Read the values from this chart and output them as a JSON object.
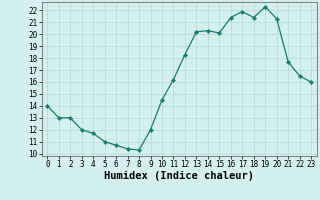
{
  "x": [
    0,
    1,
    2,
    3,
    4,
    5,
    6,
    7,
    8,
    9,
    10,
    11,
    12,
    13,
    14,
    15,
    16,
    17,
    18,
    19,
    20,
    21,
    22,
    23
  ],
  "y": [
    14,
    13,
    13,
    12,
    11.7,
    11,
    10.7,
    10.4,
    10.3,
    12,
    14.5,
    16.2,
    18.3,
    20.2,
    20.3,
    20.1,
    21.4,
    21.9,
    21.4,
    22.3,
    21.3,
    17.7,
    16.5,
    16
  ],
  "line_color": "#1a7a6e",
  "marker": "D",
  "marker_size": 2.2,
  "bg_color": "#d4f0ee",
  "grid_color": "#b0d8d5",
  "xlabel": "Humidex (Indice chaleur)",
  "ylim": [
    9.8,
    22.7
  ],
  "xlim": [
    -0.5,
    23.5
  ],
  "yticks": [
    10,
    11,
    12,
    13,
    14,
    15,
    16,
    17,
    18,
    19,
    20,
    21,
    22
  ],
  "xticks": [
    0,
    1,
    2,
    3,
    4,
    5,
    6,
    7,
    8,
    9,
    10,
    11,
    12,
    13,
    14,
    15,
    16,
    17,
    18,
    19,
    20,
    21,
    22,
    23
  ],
  "tick_fontsize": 5.5,
  "xlabel_fontsize": 7.5,
  "xlabel_fontweight": "bold"
}
